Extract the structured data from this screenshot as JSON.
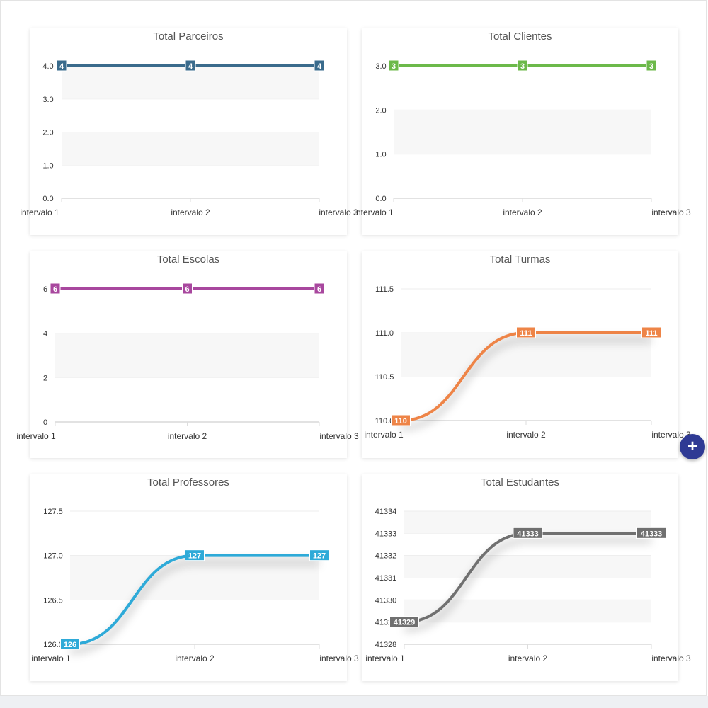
{
  "chart_data": [
    {
      "type": "line",
      "title": "Total Parceiros",
      "categories": [
        "intervalo 1",
        "intervalo 2",
        "intervalo 3"
      ],
      "values": [
        4,
        4,
        4
      ],
      "data_labels": [
        "4",
        "4",
        "4"
      ],
      "ylim": [
        0,
        4
      ],
      "yticks": [
        "0.0",
        "1.0",
        "2.0",
        "3.0",
        "4.0"
      ],
      "color": "#3a6b8c",
      "grid": true
    },
    {
      "type": "line",
      "title": "Total Clientes",
      "categories": [
        "intervalo 1",
        "intervalo 2",
        "intervalo 3"
      ],
      "values": [
        3,
        3,
        3
      ],
      "data_labels": [
        "3",
        "3",
        "3"
      ],
      "ylim": [
        0,
        3
      ],
      "yticks": [
        "0.0",
        "1.0",
        "2.0",
        "3.0"
      ],
      "color": "#6cb94a",
      "grid": true
    },
    {
      "type": "line",
      "title": "Total Escolas",
      "categories": [
        "intervalo 1",
        "intervalo 2",
        "intervalo 3"
      ],
      "values": [
        6,
        6,
        6
      ],
      "data_labels": [
        "6",
        "6",
        "6"
      ],
      "ylim": [
        0,
        6
      ],
      "yticks": [
        "0",
        "2",
        "4",
        "6"
      ],
      "color": "#a8479e",
      "grid": true
    },
    {
      "type": "line",
      "title": "Total Turmas",
      "categories": [
        "intervalo 1",
        "intervalo 2",
        "intervalo 3"
      ],
      "values": [
        110,
        111,
        111
      ],
      "data_labels": [
        "110",
        "111",
        "111"
      ],
      "ylim": [
        110,
        111.5
      ],
      "yticks": [
        "110.0",
        "110.5",
        "111.0",
        "111.5"
      ],
      "color": "#ee8447",
      "grid": true
    },
    {
      "type": "line",
      "title": "Total Professores",
      "categories": [
        "intervalo 1",
        "intervalo 2",
        "intervalo 3"
      ],
      "values": [
        126,
        127,
        127
      ],
      "data_labels": [
        "126",
        "127",
        "127"
      ],
      "ylim": [
        126,
        127.5
      ],
      "yticks": [
        "126.0",
        "126.5",
        "127.0",
        "127.5"
      ],
      "color": "#2eaad8",
      "grid": true
    },
    {
      "type": "line",
      "title": "Total Estudantes",
      "categories": [
        "intervalo 1",
        "intervalo 2",
        "intervalo 3"
      ],
      "values": [
        41329,
        41333,
        41333
      ],
      "data_labels": [
        "41329",
        "41333",
        "41333"
      ],
      "ylim": [
        41328,
        41334
      ],
      "yticks": [
        "41328",
        "41329",
        "41330",
        "41331",
        "41332",
        "41333",
        "41334"
      ],
      "color": "#707070",
      "grid": true
    }
  ],
  "fab": {
    "symbol": "+",
    "icon": "plus-icon"
  }
}
